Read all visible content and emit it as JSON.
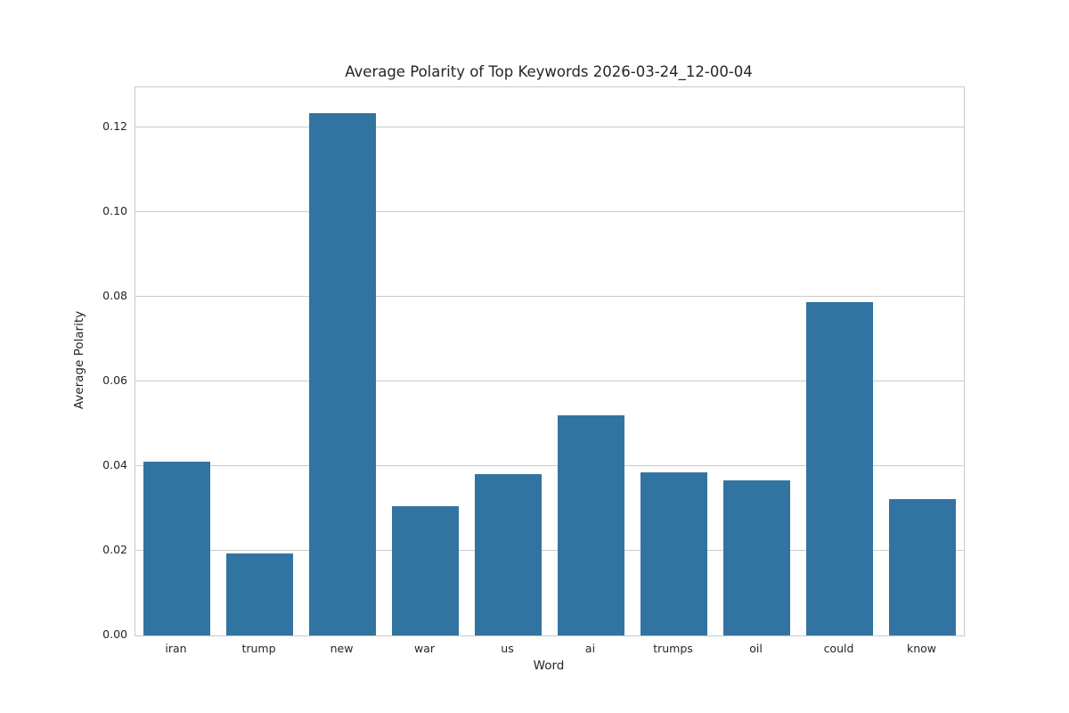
{
  "chart_data": {
    "type": "bar",
    "title": "Average Polarity of Top Keywords 2026-03-24_12-00-04",
    "xlabel": "Word",
    "ylabel": "Average Polarity",
    "categories": [
      "iran",
      "trump",
      "new",
      "war",
      "us",
      "ai",
      "trumps",
      "oil",
      "could",
      "know"
    ],
    "values": [
      0.041,
      0.0193,
      0.1233,
      0.0305,
      0.038,
      0.052,
      0.0385,
      0.0367,
      0.0787,
      0.0322
    ],
    "ylim": [
      0,
      0.1294
    ],
    "yticks": [
      "0.00",
      "0.02",
      "0.04",
      "0.06",
      "0.08",
      "0.10",
      "0.12"
    ],
    "grid": true,
    "legend_position": "none",
    "bar_color": "#3274a1",
    "grid_color": "#cccccc",
    "spine_color": "#c9c9c9",
    "text_color": "#262626",
    "background_color": "#ffffff"
  }
}
